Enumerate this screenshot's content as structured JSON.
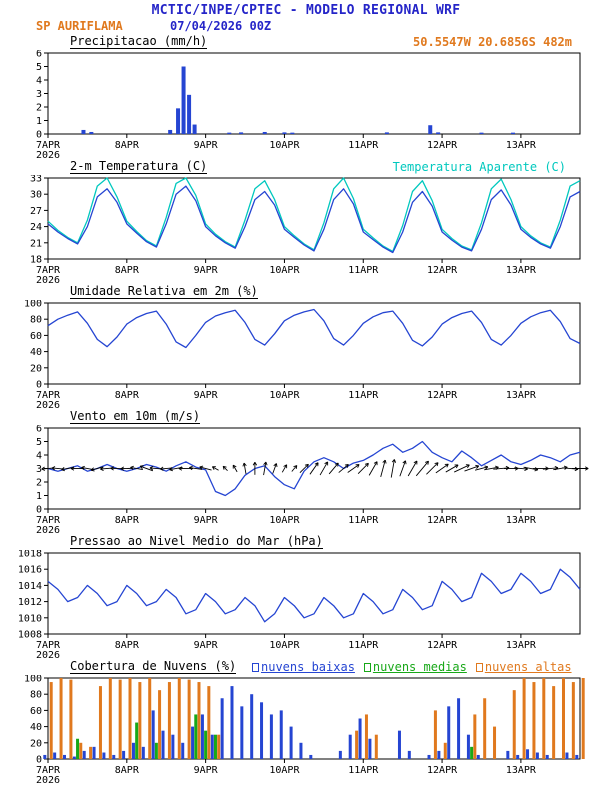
{
  "header": {
    "title": "MCTIC/INPE/CPTEC - MODELO REGIONAL WRF",
    "station": "SP AURIFLAMA",
    "run_datetime": "07/04/2026 00Z",
    "location": "50.5547W 20.6856S 482m"
  },
  "colors": {
    "header_blue": "#2525c8",
    "orange": "#e0791e",
    "cyan": "#00c8be",
    "line_blue": "#2545d2",
    "green": "#18a818",
    "black": "#000000"
  },
  "x_axis": {
    "lim": [
      7,
      13.75
    ],
    "ticks": [
      {
        "x": 7,
        "label": "7APR",
        "sub": "2026"
      },
      {
        "x": 8,
        "label": "8APR"
      },
      {
        "x": 9,
        "label": "9APR"
      },
      {
        "x": 10,
        "label": "10APR"
      },
      {
        "x": 11,
        "label": "11APR"
      },
      {
        "x": 12,
        "label": "12APR"
      },
      {
        "x": 13,
        "label": "13APR"
      }
    ]
  },
  "chart_data": [
    {
      "id": "precipitation",
      "type": "bar",
      "title": "Precipitacao (mm/h)",
      "ylim": [
        0,
        6
      ],
      "yticks": [
        0,
        1,
        2,
        3,
        4,
        5,
        6
      ],
      "color": "#2545d2",
      "points": [
        [
          7.45,
          0.3
        ],
        [
          7.55,
          0.15
        ],
        [
          8.55,
          0.3
        ],
        [
          8.65,
          1.9
        ],
        [
          8.72,
          5.0
        ],
        [
          8.79,
          2.9
        ],
        [
          8.86,
          0.7
        ],
        [
          9.3,
          0.1
        ],
        [
          9.45,
          0.12
        ],
        [
          9.75,
          0.15
        ],
        [
          10.0,
          0.12
        ],
        [
          10.1,
          0.1
        ],
        [
          11.3,
          0.12
        ],
        [
          11.85,
          0.65
        ],
        [
          11.95,
          0.12
        ],
        [
          12.5,
          0.1
        ],
        [
          12.9,
          0.1
        ]
      ]
    },
    {
      "id": "temperature",
      "type": "line",
      "title": "2-m Temperatura (C)",
      "secondary_label": "Temperatura Aparente (C)",
      "ylim": [
        18,
        33
      ],
      "yticks": [
        18,
        21,
        24,
        27,
        30,
        33
      ],
      "x0": 7,
      "dx": 0.125,
      "series": [
        {
          "name": "Temperatura Aparente (C)",
          "color": "#00c8be",
          "values": [
            25.0,
            23.3,
            22.0,
            21.0,
            25.2,
            31.5,
            33.0,
            29.5,
            25.0,
            23.1,
            21.4,
            20.4,
            25.7,
            32.0,
            33.0,
            29.8,
            24.5,
            22.6,
            21.2,
            20.2,
            25.2,
            31.0,
            32.5,
            29.0,
            24.0,
            22.3,
            20.8,
            19.7,
            24.7,
            31.0,
            33.0,
            29.2,
            23.5,
            21.9,
            20.4,
            19.4,
            24.2,
            30.5,
            32.5,
            28.8,
            23.5,
            21.8,
            20.4,
            19.7,
            24.7,
            31.0,
            32.8,
            29.0,
            24.0,
            22.3,
            21.0,
            20.2,
            25.2,
            31.5,
            32.5
          ]
        },
        {
          "name": "2-m Temperatura (C)",
          "color": "#2545d2",
          "values": [
            24.5,
            23.0,
            21.8,
            20.8,
            24.0,
            29.5,
            31.0,
            28.5,
            24.5,
            22.8,
            21.2,
            20.2,
            24.5,
            30.0,
            31.5,
            28.8,
            24.0,
            22.3,
            21.0,
            20.0,
            24.0,
            29.0,
            30.5,
            28.0,
            23.5,
            22.0,
            20.6,
            19.5,
            23.5,
            29.0,
            31.0,
            28.2,
            23.0,
            21.6,
            20.2,
            19.2,
            23.0,
            28.5,
            30.5,
            27.8,
            23.0,
            21.5,
            20.2,
            19.5,
            23.5,
            29.0,
            30.8,
            28.0,
            23.5,
            22.0,
            20.8,
            20.0,
            24.0,
            29.5,
            30.5
          ]
        }
      ]
    },
    {
      "id": "humidity",
      "type": "line",
      "title": "Umidade Relativa em 2m (%)",
      "ylim": [
        0,
        100
      ],
      "yticks": [
        0,
        20,
        40,
        60,
        80,
        100
      ],
      "x0": 7,
      "dx": 0.125,
      "series": [
        {
          "name": "Umidade Relativa em 2m (%)",
          "color": "#2545d2",
          "values": [
            72,
            80,
            85,
            89,
            75,
            55,
            46,
            58,
            74,
            82,
            87,
            90,
            74,
            52,
            45,
            60,
            76,
            84,
            88,
            91,
            76,
            55,
            48,
            62,
            78,
            85,
            89,
            92,
            78,
            56,
            48,
            60,
            75,
            83,
            88,
            90,
            75,
            54,
            47,
            58,
            74,
            82,
            87,
            90,
            76,
            55,
            48,
            60,
            75,
            83,
            88,
            91,
            77,
            56,
            50
          ]
        }
      ]
    },
    {
      "id": "wind",
      "type": "wind",
      "title": "Vento em 10m (m/s)",
      "ylim": [
        0,
        6
      ],
      "yticks": [
        0,
        1,
        2,
        3,
        4,
        5,
        6
      ],
      "x0": 7,
      "dx": 0.125,
      "anchor": 3,
      "speed": {
        "name": "Vento em 10m (m/s)",
        "color": "#2545d2",
        "values": [
          3.0,
          2.8,
          3.0,
          3.2,
          2.8,
          3.0,
          3.3,
          3.0,
          2.8,
          3.0,
          3.3,
          3.1,
          2.8,
          3.2,
          3.5,
          3.1,
          2.9,
          1.3,
          1.0,
          1.5,
          2.5,
          3.0,
          3.2,
          2.4,
          1.8,
          1.5,
          2.8,
          3.5,
          3.8,
          3.5,
          3.0,
          3.4,
          3.6,
          4.0,
          4.5,
          4.8,
          4.2,
          4.5,
          5.0,
          4.2,
          3.8,
          3.5,
          4.3,
          3.8,
          3.2,
          3.6,
          4.0,
          3.5,
          3.3,
          3.6,
          4.0,
          3.8,
          3.5,
          4.0,
          4.2
        ]
      },
      "dirs_deg": [
        185,
        175,
        190,
        180,
        170,
        195,
        185,
        178,
        182,
        170,
        160,
        175,
        185,
        190,
        180,
        172,
        165,
        150,
        135,
        120,
        100,
        90,
        80,
        70,
        60,
        50,
        45,
        55,
        60,
        50,
        40,
        35,
        45,
        60,
        75,
        80,
        70,
        60,
        50,
        45,
        35,
        30,
        25,
        20,
        15,
        10,
        5,
        0,
        355,
        350,
        0,
        5,
        10,
        355,
        0
      ]
    },
    {
      "id": "pressure",
      "type": "line",
      "title": "Pressao ao Nivel Medio do Mar (hPa)",
      "ylim": [
        1008,
        1018
      ],
      "yticks": [
        1008,
        1010,
        1012,
        1014,
        1016,
        1018
      ],
      "x0": 7,
      "dx": 0.125,
      "series": [
        {
          "name": "Pressao ao Nivel Medio do Mar (hPa)",
          "color": "#2545d2",
          "values": [
            1014.5,
            1013.5,
            1012.0,
            1012.5,
            1014.0,
            1013.0,
            1011.5,
            1012.0,
            1014.0,
            1013.0,
            1011.5,
            1012.0,
            1013.5,
            1012.5,
            1010.5,
            1011.0,
            1013.0,
            1012.0,
            1010.5,
            1011.0,
            1012.5,
            1011.5,
            1009.5,
            1010.5,
            1012.5,
            1011.5,
            1010.0,
            1010.5,
            1012.5,
            1011.5,
            1010.0,
            1010.5,
            1013.0,
            1012.0,
            1010.5,
            1011.0,
            1013.5,
            1012.5,
            1011.0,
            1011.5,
            1014.5,
            1013.5,
            1012.0,
            1012.5,
            1015.5,
            1014.5,
            1013.0,
            1013.5,
            1015.5,
            1014.5,
            1013.0,
            1013.5,
            1016.0,
            1015.0,
            1013.5
          ]
        }
      ]
    },
    {
      "id": "clouds",
      "type": "cloud",
      "title": "Cobertura de Nuvens (%)",
      "ylim": [
        0,
        100
      ],
      "yticks": [
        0,
        20,
        40,
        60,
        80,
        100
      ],
      "x0": 7,
      "dx": 0.125,
      "series": [
        {
          "name": "nuvens baixas",
          "color": "#2545d2",
          "values": [
            5,
            8,
            5,
            3,
            10,
            15,
            8,
            5,
            10,
            20,
            15,
            60,
            35,
            30,
            20,
            40,
            55,
            30,
            75,
            90,
            65,
            80,
            70,
            55,
            60,
            40,
            20,
            5,
            0,
            0,
            10,
            30,
            50,
            25,
            0,
            0,
            35,
            10,
            0,
            5,
            10,
            65,
            75,
            30,
            5,
            0,
            0,
            10,
            5,
            12,
            8,
            5,
            0,
            8,
            5
          ]
        },
        {
          "name": "nuvens medias",
          "color": "#18a818",
          "values": [
            0,
            0,
            0,
            25,
            0,
            0,
            0,
            0,
            0,
            45,
            0,
            20,
            0,
            0,
            0,
            55,
            35,
            30,
            0,
            0,
            0,
            0,
            0,
            0,
            0,
            0,
            0,
            0,
            0,
            0,
            0,
            0,
            0,
            0,
            0,
            0,
            0,
            0,
            0,
            0,
            0,
            0,
            0,
            15,
            0,
            0,
            0,
            0,
            0,
            0,
            0,
            0,
            0,
            0,
            0
          ]
        },
        {
          "name": "nuvens altas",
          "color": "#e0791e",
          "values": [
            95,
            100,
            98,
            20,
            15,
            90,
            100,
            98,
            100,
            95,
            100,
            85,
            95,
            100,
            98,
            95,
            90,
            30,
            0,
            0,
            0,
            0,
            0,
            0,
            0,
            0,
            0,
            0,
            0,
            0,
            0,
            35,
            55,
            30,
            0,
            0,
            0,
            0,
            0,
            60,
            20,
            0,
            0,
            55,
            75,
            40,
            0,
            85,
            100,
            95,
            100,
            90,
            100,
            95,
            100
          ]
        }
      ]
    }
  ]
}
